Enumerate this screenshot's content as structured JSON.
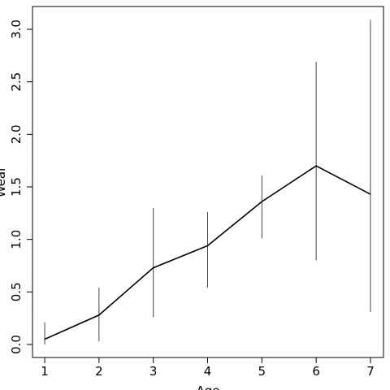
{
  "chart_data": {
    "type": "line",
    "x_label": "Age",
    "y_label": "Wear",
    "x": [
      1,
      2,
      3,
      4,
      5,
      6,
      7
    ],
    "series": [
      {
        "values": [
          0.05,
          0.28,
          0.73,
          0.94,
          1.36,
          1.7,
          1.43
        ],
        "lower": [
          0.0,
          0.03,
          0.26,
          0.54,
          1.01,
          0.8,
          0.31
        ],
        "upper": [
          0.21,
          0.54,
          1.3,
          1.26,
          1.61,
          2.69,
          3.09
        ],
        "color": "#000000"
      }
    ],
    "xlim": [
      0.775,
      7.24
    ],
    "ylim": [
      -0.124,
      3.217
    ],
    "xticks": [
      1,
      2,
      3,
      4,
      5,
      6,
      7
    ],
    "yticks": [
      {
        "value": 0,
        "label": "0.0"
      },
      {
        "value": 0.5,
        "label": "0.5"
      },
      {
        "value": 1,
        "label": "1.0"
      },
      {
        "value": 1.5,
        "label": "1.5"
      },
      {
        "value": 2,
        "label": "2.0"
      },
      {
        "value": 2.5,
        "label": "2.5"
      },
      {
        "value": 3,
        "label": "3.0"
      }
    ]
  }
}
